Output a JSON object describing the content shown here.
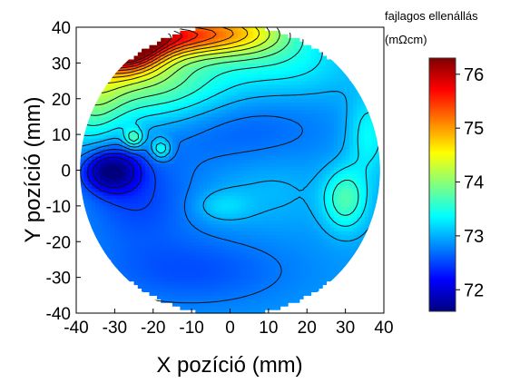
{
  "chart_data": {
    "type": "heatmap",
    "title": "",
    "xlabel": "X pozíció (mm)",
    "ylabel": "Y pozíció (mm)",
    "xlim": [
      -40,
      40
    ],
    "ylim": [
      -40,
      40
    ],
    "x_ticks": [
      -40,
      -30,
      -20,
      -10,
      0,
      10,
      20,
      30,
      40
    ],
    "y_ticks": [
      -40,
      -30,
      -20,
      -10,
      0,
      10,
      20,
      30,
      40
    ],
    "x_tick_labels": [
      "-40",
      "-30",
      "-20",
      "-10",
      "0",
      "10",
      "20",
      "30",
      "40"
    ],
    "y_tick_labels": [
      "-40",
      "-30",
      "-20",
      "-10",
      "0",
      "10",
      "20",
      "30",
      "40"
    ],
    "wafer_radius_mm": 39,
    "colorbar": {
      "title_line1": "fajlagos ellenállás",
      "title_line2": "(mΩcm)",
      "range": [
        71.6,
        76.3
      ],
      "ticks": [
        72,
        73,
        74,
        75,
        76
      ],
      "tick_labels": [
        "72",
        "73",
        "74",
        "75",
        "76"
      ],
      "colors": [
        "#00007f",
        "#0000ff",
        "#0080ff",
        "#00ffff",
        "#80ff80",
        "#ffff00",
        "#ff8000",
        "#ff0000",
        "#7f0000"
      ]
    },
    "field": {
      "base": 72.9,
      "features": [
        {
          "x": -28,
          "y": 35,
          "sx": 7,
          "sy": 5,
          "amp": 3.4
        },
        {
          "x": -15,
          "y": 38,
          "sx": 10,
          "sy": 4,
          "amp": 2.0
        },
        {
          "x": 3,
          "y": 39,
          "sx": 10,
          "sy": 5,
          "amp": 1.4
        },
        {
          "x": -20,
          "y": 25,
          "sx": 14,
          "sy": 8,
          "amp": 1.0
        },
        {
          "x": 15,
          "y": 30,
          "sx": 12,
          "sy": 7,
          "amp": 0.4
        },
        {
          "x": -36,
          "y": 22,
          "sx": 6,
          "sy": 10,
          "amp": 0.8
        },
        {
          "x": -31,
          "y": 0,
          "sx": 5,
          "sy": 4,
          "amp": -1.25
        },
        {
          "x": -24,
          "y": -8,
          "sx": 10,
          "sy": 9,
          "amp": -0.4
        },
        {
          "x": 0,
          "y": 12,
          "sx": 18,
          "sy": 8,
          "amp": -0.3
        },
        {
          "x": -10,
          "y": -28,
          "sx": 18,
          "sy": 7,
          "amp": -0.35
        },
        {
          "x": -25,
          "y": 9,
          "sx": 1.8,
          "sy": 2,
          "amp": 0.8
        },
        {
          "x": -18,
          "y": 6,
          "sx": 1.8,
          "sy": 2,
          "amp": 0.7
        },
        {
          "x": 30,
          "y": -8,
          "sx": 4,
          "sy": 6,
          "amp": 0.8
        },
        {
          "x": 36,
          "y": 10,
          "sx": 4,
          "sy": 8,
          "amp": 0.5
        },
        {
          "x": -2,
          "y": -10,
          "sx": 5,
          "sy": 3,
          "amp": 0.3
        },
        {
          "x": 10,
          "y": -5,
          "sx": 10,
          "sy": 7,
          "amp": 0.15
        }
      ]
    }
  }
}
